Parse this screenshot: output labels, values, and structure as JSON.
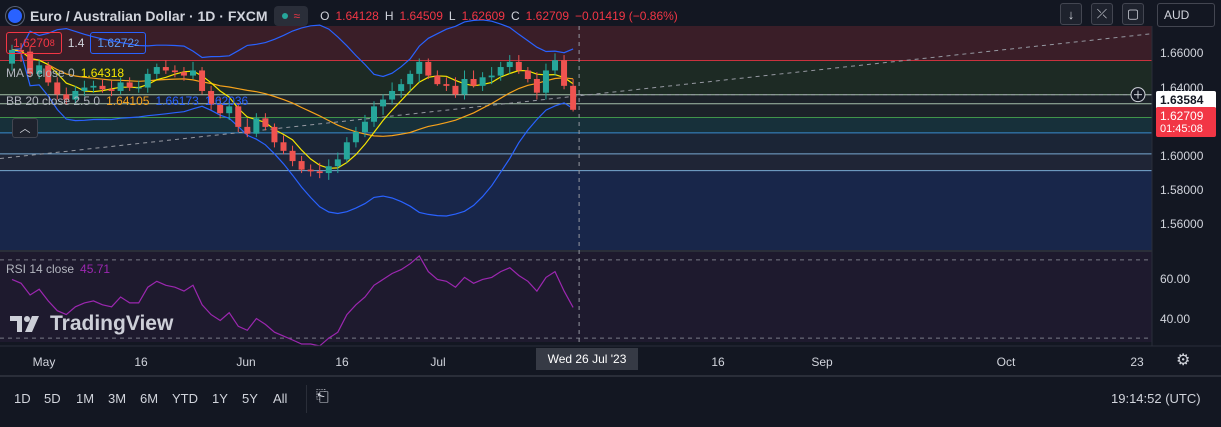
{
  "header": {
    "title": "Euro / Australian Dollar · 1D · FXCM",
    "status_glyph": "≈",
    "ohlc": {
      "o_label": "O",
      "o_value": "1.64128",
      "h_label": "H",
      "h_value": "1.64509",
      "l_label": "L",
      "l_value": "1.62609",
      "c_label": "C",
      "c_value": "1.62709",
      "change": "−0.01419 (−0.86%)"
    },
    "sell_price_main": "1.6270",
    "sell_price_sup": "8",
    "spread": "1.4",
    "buy_price_main": "1.6272",
    "buy_price_sup": "2",
    "currency": "AUD"
  },
  "indicators": {
    "ma_label": "MA 5 close 0",
    "ma_value": "1.64318",
    "bb_label": "BB 20 close 2.5 0",
    "bb_basis": "1.64105",
    "bb_upper": "1.66173",
    "bb_lower": "1.62036",
    "rsi_label": "RSI 14 close",
    "rsi_value": "45.71"
  },
  "price_axis": {
    "ticks": [
      "1.66000",
      "1.64000",
      "1.62000",
      "1.60000",
      "1.58000",
      "1.56000"
    ],
    "crosshair_price": "1.63584",
    "last_price": "1.62709",
    "countdown": "01:45:08"
  },
  "rsi_axis": {
    "ticks": [
      "60.00",
      "40.00"
    ]
  },
  "time_axis": {
    "labels": [
      "May",
      "16",
      "Jun",
      "16",
      "Jul",
      "16",
      "Sep",
      "Oct",
      "23"
    ],
    "crosshair_date": "Wed 26 Jul '23"
  },
  "bottom_bar": {
    "timeframes": [
      "1D",
      "5D",
      "1M",
      "3M",
      "6M",
      "YTD",
      "1Y",
      "5Y",
      "All"
    ],
    "clock": "19:14:52 (UTC)"
  },
  "watermark": "TradingView",
  "colors": {
    "background": "#131722",
    "up": "#26a69a",
    "down": "#ef5350",
    "ma": "#f7e600",
    "bb_basis": "#f7a21b",
    "bb_band": "#2962ff",
    "rsi": "#9c27b0"
  },
  "chart_data": {
    "type": "candlestick",
    "title": "Euro / Australian Dollar · 1D · FXCM",
    "x": [
      "2023-05-01",
      "2023-05-02",
      "2023-05-03",
      "2023-05-04",
      "2023-05-05",
      "2023-05-08",
      "2023-05-09",
      "2023-05-10",
      "2023-05-11",
      "2023-05-12",
      "2023-05-15",
      "2023-05-16",
      "2023-05-17",
      "2023-05-18",
      "2023-05-19",
      "2023-05-22",
      "2023-05-23",
      "2023-05-24",
      "2023-05-25",
      "2023-05-26",
      "2023-05-29",
      "2023-05-30",
      "2023-05-31",
      "2023-06-01",
      "2023-06-02",
      "2023-06-05",
      "2023-06-06",
      "2023-06-07",
      "2023-06-08",
      "2023-06-09",
      "2023-06-12",
      "2023-06-13",
      "2023-06-14",
      "2023-06-15",
      "2023-06-16",
      "2023-06-19",
      "2023-06-20",
      "2023-06-21",
      "2023-06-22",
      "2023-06-23",
      "2023-06-26",
      "2023-06-27",
      "2023-06-28",
      "2023-06-29",
      "2023-06-30",
      "2023-07-03",
      "2023-07-04",
      "2023-07-05",
      "2023-07-06",
      "2023-07-07",
      "2023-07-10",
      "2023-07-11",
      "2023-07-12",
      "2023-07-13",
      "2023-07-14",
      "2023-07-17",
      "2023-07-18",
      "2023-07-19",
      "2023-07-20",
      "2023-07-21",
      "2023-07-24",
      "2023-07-25",
      "2023-07-26"
    ],
    "open": [
      1.654,
      1.662,
      1.661,
      1.648,
      1.653,
      1.643,
      1.636,
      1.633,
      1.638,
      1.64,
      1.641,
      1.639,
      1.638,
      1.643,
      1.64,
      1.64,
      1.648,
      1.652,
      1.65,
      1.649,
      1.647,
      1.65,
      1.638,
      1.63,
      1.625,
      1.629,
      1.617,
      1.613,
      1.622,
      1.617,
      1.608,
      1.603,
      1.597,
      1.592,
      1.591,
      1.59,
      1.594,
      1.598,
      1.608,
      1.614,
      1.62,
      1.629,
      1.633,
      1.638,
      1.642,
      1.648,
      1.655,
      1.647,
      1.642,
      1.641,
      1.636,
      1.645,
      1.641,
      1.646,
      1.647,
      1.652,
      1.655,
      1.65,
      1.645,
      1.637,
      1.65,
      1.656,
      1.641
    ],
    "high": [
      1.665,
      1.666,
      1.664,
      1.656,
      1.655,
      1.646,
      1.64,
      1.641,
      1.644,
      1.644,
      1.645,
      1.644,
      1.646,
      1.646,
      1.644,
      1.651,
      1.654,
      1.656,
      1.653,
      1.652,
      1.655,
      1.652,
      1.641,
      1.634,
      1.632,
      1.631,
      1.622,
      1.625,
      1.625,
      1.619,
      1.612,
      1.606,
      1.6,
      1.595,
      1.596,
      1.598,
      1.602,
      1.611,
      1.617,
      1.624,
      1.632,
      1.636,
      1.643,
      1.645,
      1.65,
      1.657,
      1.657,
      1.65,
      1.646,
      1.646,
      1.65,
      1.65,
      1.649,
      1.652,
      1.655,
      1.659,
      1.659,
      1.652,
      1.649,
      1.654,
      1.66,
      1.659,
      1.645
    ],
    "low": [
      1.65,
      1.655,
      1.646,
      1.645,
      1.641,
      1.633,
      1.63,
      1.63,
      1.635,
      1.637,
      1.637,
      1.635,
      1.636,
      1.638,
      1.637,
      1.637,
      1.645,
      1.648,
      1.646,
      1.644,
      1.645,
      1.636,
      1.627,
      1.622,
      1.621,
      1.614,
      1.611,
      1.611,
      1.615,
      1.605,
      1.601,
      1.594,
      1.59,
      1.588,
      1.587,
      1.586,
      1.59,
      1.596,
      1.605,
      1.611,
      1.617,
      1.624,
      1.63,
      1.634,
      1.638,
      1.643,
      1.645,
      1.641,
      1.638,
      1.634,
      1.633,
      1.64,
      1.638,
      1.642,
      1.644,
      1.648,
      1.648,
      1.643,
      1.633,
      1.633,
      1.647,
      1.639,
      1.626
    ],
    "close": [
      1.662,
      1.661,
      1.648,
      1.653,
      1.643,
      1.636,
      1.633,
      1.638,
      1.64,
      1.641,
      1.639,
      1.638,
      1.643,
      1.64,
      1.64,
      1.648,
      1.652,
      1.65,
      1.649,
      1.647,
      1.65,
      1.638,
      1.63,
      1.625,
      1.629,
      1.617,
      1.613,
      1.622,
      1.617,
      1.608,
      1.603,
      1.597,
      1.592,
      1.591,
      1.59,
      1.594,
      1.598,
      1.608,
      1.614,
      1.62,
      1.629,
      1.633,
      1.638,
      1.642,
      1.648,
      1.655,
      1.647,
      1.642,
      1.641,
      1.636,
      1.645,
      1.641,
      1.646,
      1.647,
      1.652,
      1.655,
      1.65,
      1.645,
      1.637,
      1.65,
      1.656,
      1.641,
      1.627
    ],
    "ylim": [
      1.545,
      1.676
    ],
    "rsi": [
      60,
      58,
      52,
      55,
      49,
      44,
      42,
      46,
      48,
      49,
      47,
      46,
      51,
      48,
      48,
      56,
      59,
      57,
      56,
      54,
      57,
      47,
      42,
      39,
      43,
      36,
      34,
      40,
      37,
      33,
      31,
      29,
      27,
      27,
      26,
      30,
      33,
      42,
      47,
      51,
      57,
      60,
      63,
      65,
      68,
      72,
      64,
      60,
      59,
      56,
      61,
      58,
      60,
      61,
      64,
      66,
      62,
      59,
      54,
      61,
      64,
      54,
      45.71
    ],
    "rsi_ylim": [
      28,
      74
    ],
    "horizontal_levels": [
      1.6558,
      1.6358,
      1.6305,
      1.6225,
      1.6135,
      1.6012,
      1.5914
    ],
    "bands": [
      {
        "from": 1.6558,
        "to": 1.676,
        "color": "#3a1e28"
      },
      {
        "from": 1.6358,
        "to": 1.6558,
        "color": "#1d2a24"
      },
      {
        "from": 1.6225,
        "to": 1.6358,
        "color": "#1c2229"
      },
      {
        "from": 1.6135,
        "to": 1.6225,
        "color": "#17303a"
      },
      {
        "from": 1.6012,
        "to": 1.6135,
        "color": "#1b2536"
      },
      {
        "from": 1.5914,
        "to": 1.6012,
        "color": "#1f2536"
      },
      {
        "from": 1.545,
        "to": 1.5914,
        "color": "#18264a"
      }
    ],
    "rsi_levels": [
      70,
      30
    ]
  }
}
